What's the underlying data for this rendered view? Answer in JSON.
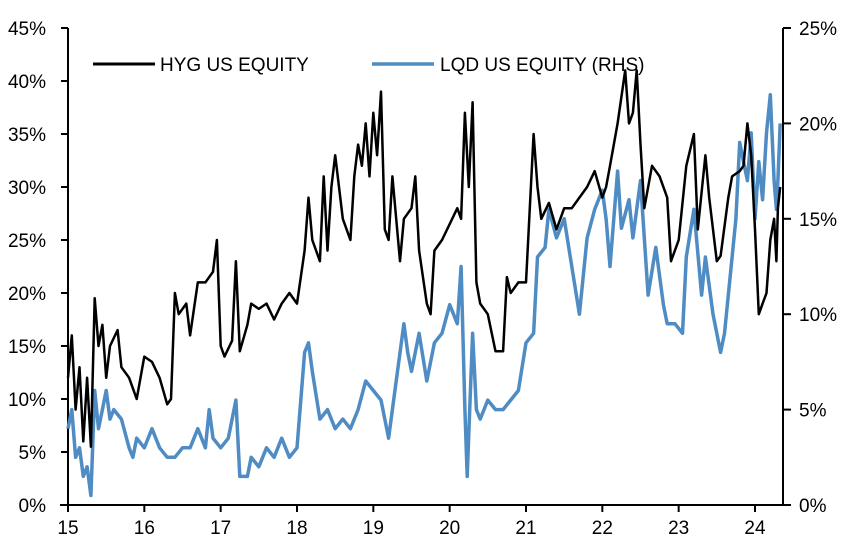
{
  "chart_data": {
    "type": "line",
    "title": "",
    "xlabel": "",
    "ylabel": "",
    "y2label": "",
    "xlim": [
      2015,
      2024.33
    ],
    "ylim": [
      0,
      45
    ],
    "y2lim": [
      0,
      25
    ],
    "grid": false,
    "legend_placement": "top",
    "x_tick_labels": [
      "15",
      "16",
      "17",
      "18",
      "19",
      "20",
      "21",
      "22",
      "23",
      "24"
    ],
    "x_tick_values": [
      2015,
      2016,
      2017,
      2018,
      2019,
      2020,
      2021,
      2022,
      2023,
      2024
    ],
    "y_tick_labels": [
      "0%",
      "5%",
      "10%",
      "15%",
      "20%",
      "25%",
      "30%",
      "35%",
      "40%",
      "45%"
    ],
    "y_tick_values": [
      0,
      5,
      10,
      15,
      20,
      25,
      30,
      35,
      40,
      45
    ],
    "y2_tick_labels": [
      "0%",
      "5%",
      "10%",
      "15%",
      "20%",
      "25%"
    ],
    "y2_tick_values": [
      0,
      5,
      10,
      15,
      20,
      25
    ],
    "series": [
      {
        "name": "HYG US EQUITY",
        "axis": "left",
        "color": "#000000",
        "points": [
          [
            2015.0,
            12
          ],
          [
            2015.05,
            16
          ],
          [
            2015.1,
            9
          ],
          [
            2015.15,
            13
          ],
          [
            2015.2,
            6
          ],
          [
            2015.25,
            12
          ],
          [
            2015.3,
            5.5
          ],
          [
            2015.35,
            19.5
          ],
          [
            2015.4,
            15
          ],
          [
            2015.45,
            17
          ],
          [
            2015.5,
            12
          ],
          [
            2015.55,
            15
          ],
          [
            2015.65,
            16.5
          ],
          [
            2015.7,
            13
          ],
          [
            2015.8,
            12
          ],
          [
            2015.9,
            10
          ],
          [
            2016.0,
            14
          ],
          [
            2016.1,
            13.5
          ],
          [
            2016.2,
            12
          ],
          [
            2016.3,
            9.5
          ],
          [
            2016.35,
            10
          ],
          [
            2016.4,
            20
          ],
          [
            2016.45,
            18
          ],
          [
            2016.55,
            19
          ],
          [
            2016.6,
            16
          ],
          [
            2016.7,
            21
          ],
          [
            2016.8,
            21
          ],
          [
            2016.9,
            22
          ],
          [
            2016.95,
            25
          ],
          [
            2017.0,
            15
          ],
          [
            2017.05,
            14
          ],
          [
            2017.15,
            15.5
          ],
          [
            2017.2,
            23
          ],
          [
            2017.25,
            14.5
          ],
          [
            2017.35,
            17
          ],
          [
            2017.4,
            19
          ],
          [
            2017.5,
            18.5
          ],
          [
            2017.6,
            19
          ],
          [
            2017.7,
            17.5
          ],
          [
            2017.8,
            19
          ],
          [
            2017.9,
            20
          ],
          [
            2018.0,
            19
          ],
          [
            2018.1,
            24
          ],
          [
            2018.15,
            29
          ],
          [
            2018.2,
            25
          ],
          [
            2018.3,
            23
          ],
          [
            2018.35,
            31
          ],
          [
            2018.4,
            24
          ],
          [
            2018.45,
            30
          ],
          [
            2018.5,
            33
          ],
          [
            2018.6,
            27
          ],
          [
            2018.7,
            25
          ],
          [
            2018.75,
            31
          ],
          [
            2018.8,
            34
          ],
          [
            2018.85,
            32
          ],
          [
            2018.9,
            36
          ],
          [
            2018.95,
            31
          ],
          [
            2019.0,
            37
          ],
          [
            2019.05,
            33
          ],
          [
            2019.1,
            39
          ],
          [
            2019.15,
            26
          ],
          [
            2019.2,
            25
          ],
          [
            2019.25,
            31
          ],
          [
            2019.35,
            23
          ],
          [
            2019.4,
            27
          ],
          [
            2019.5,
            28
          ],
          [
            2019.55,
            31
          ],
          [
            2019.6,
            24
          ],
          [
            2019.7,
            19
          ],
          [
            2019.75,
            18
          ],
          [
            2019.8,
            24
          ],
          [
            2019.9,
            25
          ],
          [
            2020.0,
            26.5
          ],
          [
            2020.1,
            28
          ],
          [
            2020.15,
            27
          ],
          [
            2020.2,
            37
          ],
          [
            2020.25,
            30
          ],
          [
            2020.3,
            38
          ],
          [
            2020.35,
            21
          ],
          [
            2020.4,
            19
          ],
          [
            2020.5,
            18
          ],
          [
            2020.6,
            14.5
          ],
          [
            2020.7,
            14.5
          ],
          [
            2020.75,
            21.5
          ],
          [
            2020.8,
            20
          ],
          [
            2020.9,
            21
          ],
          [
            2021.0,
            21
          ],
          [
            2021.05,
            28
          ],
          [
            2021.1,
            35
          ],
          [
            2021.15,
            30
          ],
          [
            2021.2,
            27
          ],
          [
            2021.3,
            28.5
          ],
          [
            2021.4,
            26
          ],
          [
            2021.5,
            28
          ],
          [
            2021.6,
            28
          ],
          [
            2021.7,
            29
          ],
          [
            2021.8,
            30
          ],
          [
            2021.9,
            31.5
          ],
          [
            2022.0,
            29
          ],
          [
            2022.05,
            30
          ],
          [
            2022.1,
            32
          ],
          [
            2022.15,
            34
          ],
          [
            2022.2,
            36
          ],
          [
            2022.3,
            41
          ],
          [
            2022.35,
            36
          ],
          [
            2022.4,
            37
          ],
          [
            2022.45,
            41
          ],
          [
            2022.5,
            34
          ],
          [
            2022.55,
            28
          ],
          [
            2022.65,
            32
          ],
          [
            2022.75,
            31
          ],
          [
            2022.85,
            29
          ],
          [
            2022.9,
            23
          ],
          [
            2023.0,
            25
          ],
          [
            2023.1,
            32
          ],
          [
            2023.2,
            35
          ],
          [
            2023.25,
            26
          ],
          [
            2023.35,
            33
          ],
          [
            2023.4,
            29
          ],
          [
            2023.5,
            23
          ],
          [
            2023.55,
            23.5
          ],
          [
            2023.65,
            29
          ],
          [
            2023.7,
            31
          ],
          [
            2023.8,
            31.5
          ],
          [
            2023.85,
            32
          ],
          [
            2023.9,
            36
          ],
          [
            2023.95,
            33
          ],
          [
            2024.0,
            26
          ],
          [
            2024.05,
            18
          ],
          [
            2024.1,
            19
          ],
          [
            2024.15,
            20
          ],
          [
            2024.2,
            25
          ],
          [
            2024.25,
            27
          ],
          [
            2024.28,
            23
          ],
          [
            2024.3,
            28
          ],
          [
            2024.33,
            30
          ]
        ]
      },
      {
        "name": "LQD US EQUITY (RHS)",
        "axis": "right",
        "color": "#4f8cc4",
        "points": [
          [
            2015.0,
            4
          ],
          [
            2015.05,
            5
          ],
          [
            2015.1,
            2.5
          ],
          [
            2015.15,
            3
          ],
          [
            2015.2,
            1.5
          ],
          [
            2015.25,
            2
          ],
          [
            2015.3,
            0.5
          ],
          [
            2015.35,
            6
          ],
          [
            2015.4,
            4
          ],
          [
            2015.45,
            5
          ],
          [
            2015.5,
            6
          ],
          [
            2015.55,
            4.5
          ],
          [
            2015.6,
            5
          ],
          [
            2015.7,
            4.5
          ],
          [
            2015.8,
            3
          ],
          [
            2015.85,
            2.5
          ],
          [
            2015.9,
            3.5
          ],
          [
            2016.0,
            3
          ],
          [
            2016.1,
            4
          ],
          [
            2016.2,
            3
          ],
          [
            2016.3,
            2.5
          ],
          [
            2016.4,
            2.5
          ],
          [
            2016.5,
            3
          ],
          [
            2016.6,
            3
          ],
          [
            2016.7,
            4
          ],
          [
            2016.8,
            3
          ],
          [
            2016.85,
            5
          ],
          [
            2016.9,
            3.5
          ],
          [
            2017.0,
            3
          ],
          [
            2017.1,
            3.5
          ],
          [
            2017.2,
            5.5
          ],
          [
            2017.25,
            1.5
          ],
          [
            2017.35,
            1.5
          ],
          [
            2017.4,
            2.5
          ],
          [
            2017.5,
            2
          ],
          [
            2017.6,
            3
          ],
          [
            2017.7,
            2.5
          ],
          [
            2017.8,
            3.5
          ],
          [
            2017.9,
            2.5
          ],
          [
            2018.0,
            3
          ],
          [
            2018.1,
            8
          ],
          [
            2018.15,
            8.5
          ],
          [
            2018.2,
            7
          ],
          [
            2018.3,
            4.5
          ],
          [
            2018.4,
            5
          ],
          [
            2018.5,
            4
          ],
          [
            2018.6,
            4.5
          ],
          [
            2018.7,
            4
          ],
          [
            2018.8,
            5
          ],
          [
            2018.9,
            6.5
          ],
          [
            2019.0,
            6
          ],
          [
            2019.1,
            5.5
          ],
          [
            2019.2,
            3.5
          ],
          [
            2019.3,
            6.5
          ],
          [
            2019.4,
            9.5
          ],
          [
            2019.45,
            8
          ],
          [
            2019.5,
            7
          ],
          [
            2019.6,
            9
          ],
          [
            2019.7,
            6.5
          ],
          [
            2019.8,
            8.5
          ],
          [
            2019.9,
            9
          ],
          [
            2020.0,
            10.5
          ],
          [
            2020.1,
            9.5
          ],
          [
            2020.15,
            12.5
          ],
          [
            2020.2,
            5
          ],
          [
            2020.23,
            1.5
          ],
          [
            2020.3,
            9
          ],
          [
            2020.35,
            5
          ],
          [
            2020.4,
            4.5
          ],
          [
            2020.5,
            5.5
          ],
          [
            2020.6,
            5
          ],
          [
            2020.7,
            5
          ],
          [
            2020.8,
            5.5
          ],
          [
            2020.9,
            6
          ],
          [
            2021.0,
            8.5
          ],
          [
            2021.1,
            9
          ],
          [
            2021.15,
            13
          ],
          [
            2021.25,
            13.5
          ],
          [
            2021.3,
            15.5
          ],
          [
            2021.4,
            14
          ],
          [
            2021.5,
            15
          ],
          [
            2021.6,
            12.5
          ],
          [
            2021.7,
            10
          ],
          [
            2021.8,
            14
          ],
          [
            2021.9,
            15.5
          ],
          [
            2022.0,
            16.5
          ],
          [
            2022.05,
            15
          ],
          [
            2022.1,
            12.5
          ],
          [
            2022.2,
            17.5
          ],
          [
            2022.25,
            14.5
          ],
          [
            2022.35,
            16
          ],
          [
            2022.4,
            14
          ],
          [
            2022.5,
            17
          ],
          [
            2022.6,
            11
          ],
          [
            2022.7,
            13.5
          ],
          [
            2022.8,
            10.5
          ],
          [
            2022.85,
            9.5
          ],
          [
            2022.95,
            9.5
          ],
          [
            2023.05,
            9
          ],
          [
            2023.1,
            13
          ],
          [
            2023.2,
            15.5
          ],
          [
            2023.3,
            11
          ],
          [
            2023.35,
            13
          ],
          [
            2023.45,
            10
          ],
          [
            2023.55,
            8
          ],
          [
            2023.6,
            9
          ],
          [
            2023.7,
            13
          ],
          [
            2023.75,
            15
          ],
          [
            2023.8,
            19
          ],
          [
            2023.85,
            18
          ],
          [
            2023.9,
            17
          ],
          [
            2023.95,
            19.5
          ],
          [
            2024.0,
            15
          ],
          [
            2024.05,
            18
          ],
          [
            2024.1,
            16
          ],
          [
            2024.15,
            19.5
          ],
          [
            2024.2,
            21.5
          ],
          [
            2024.25,
            17
          ],
          [
            2024.28,
            15.5
          ],
          [
            2024.3,
            17
          ],
          [
            2024.33,
            20
          ]
        ]
      }
    ]
  }
}
